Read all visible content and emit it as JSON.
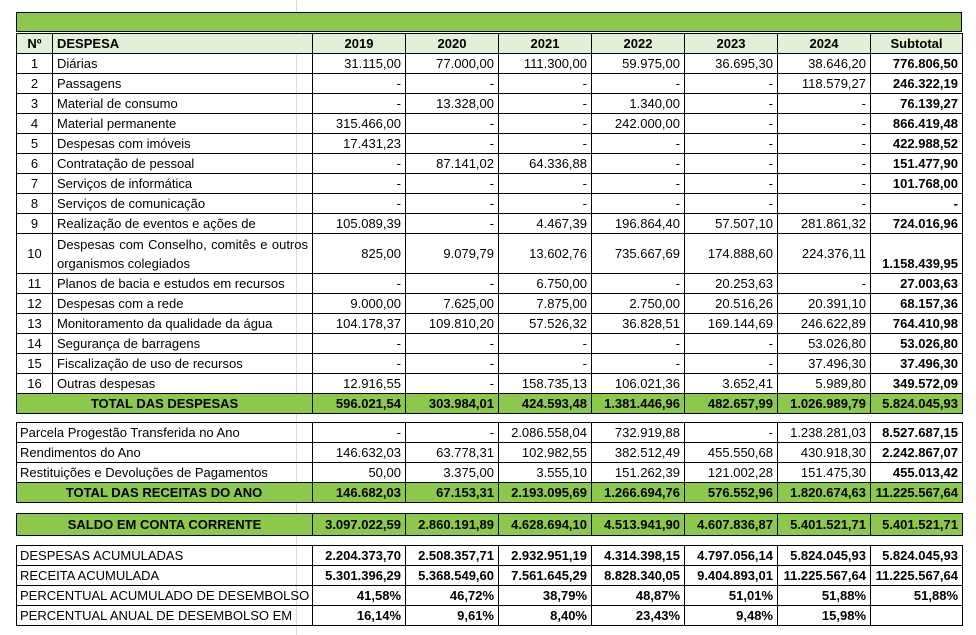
{
  "header": {
    "n": "Nº",
    "despesa": "DESPESA",
    "years": [
      "2019",
      "2020",
      "2021",
      "2022",
      "2023",
      "2024"
    ],
    "subtotal": "Subtotal"
  },
  "despesas": [
    {
      "n": "1",
      "label": "Diárias",
      "vals": [
        "31.115,00",
        "77.000,00",
        "111.300,00",
        "59.975,00",
        "36.695,30",
        "38.646,20"
      ],
      "subtotal": "776.806,50"
    },
    {
      "n": "2",
      "label": "Passagens",
      "vals": [
        "-",
        "-",
        "-",
        "-",
        "-",
        "118.579,27"
      ],
      "subtotal": "246.322,19"
    },
    {
      "n": "3",
      "label": "Material de consumo",
      "vals": [
        "-",
        "13.328,00",
        "-",
        "1.340,00",
        "-",
        "-"
      ],
      "subtotal": "76.139,27"
    },
    {
      "n": "4",
      "label": "Material permanente",
      "vals": [
        "315.466,00",
        "-",
        "-",
        "242.000,00",
        "-",
        "-"
      ],
      "subtotal": "866.419,48"
    },
    {
      "n": "5",
      "label": "Despesas com imóveis",
      "vals": [
        "17.431,23",
        "-",
        "-",
        "-",
        "-",
        "-"
      ],
      "subtotal": "422.988,52"
    },
    {
      "n": "6",
      "label": "Contratação de pessoal",
      "vals": [
        "-",
        "87.141,02",
        "64.336,88",
        "-",
        "-",
        "-"
      ],
      "subtotal": "151.477,90"
    },
    {
      "n": "7",
      "label": "Serviços de informática",
      "vals": [
        "-",
        "-",
        "-",
        "-",
        "-",
        "-"
      ],
      "subtotal": "101.768,00"
    },
    {
      "n": "8",
      "label": "Serviços de comunicação",
      "vals": [
        "-",
        "-",
        "-",
        "-",
        "-",
        "-"
      ],
      "subtotal": "-"
    },
    {
      "n": "9",
      "label": "Realização de eventos e ações de",
      "vals": [
        "105.089,39",
        "-",
        "4.467,39",
        "196.864,40",
        "57.507,10",
        "281.861,32"
      ],
      "subtotal": "724.016,96"
    },
    {
      "n": "10",
      "label": "Despesas com Conselho, comitês e outros organismos colegiados",
      "vals": [
        "825,00",
        "9.079,79",
        "13.602,76",
        "735.667,69",
        "174.888,60",
        "224.376,11"
      ],
      "subtotal": "1.158.439,95",
      "tall": true
    },
    {
      "n": "11",
      "label": "Planos de bacia e estudos em recursos",
      "vals": [
        "-",
        "-",
        "6.750,00",
        "-",
        "20.253,63",
        "-"
      ],
      "subtotal": "27.003,63"
    },
    {
      "n": "12",
      "label": "Despesas com a rede",
      "vals": [
        "9.000,00",
        "7.625,00",
        "7.875,00",
        "2.750,00",
        "20.516,26",
        "20.391,10"
      ],
      "subtotal": "68.157,36"
    },
    {
      "n": "13",
      "label": "Monitoramento da qualidade da água",
      "vals": [
        "104.178,37",
        "109.810,20",
        "57.526,32",
        "36.828,51",
        "169.144,69",
        "246.622,89"
      ],
      "subtotal": "764.410,98"
    },
    {
      "n": "14",
      "label": "Segurança de barragens",
      "vals": [
        "-",
        "-",
        "-",
        "-",
        "-",
        "53.026,80"
      ],
      "subtotal": "53.026,80"
    },
    {
      "n": "15",
      "label": "Fiscalização de uso de recursos",
      "vals": [
        "-",
        "-",
        "-",
        "-",
        "-",
        "37.496,30"
      ],
      "subtotal": "37.496,30"
    },
    {
      "n": "16",
      "label": "Outras despesas",
      "vals": [
        "12.916,55",
        "-",
        "158.735,13",
        "106.021,36",
        "3.652,41",
        "5.989,80"
      ],
      "subtotal": "349.572,09"
    }
  ],
  "total_despesas": {
    "label": "TOTAL DAS DESPESAS",
    "vals": [
      "596.021,54",
      "303.984,01",
      "424.593,48",
      "1.381.446,96",
      "482.657,99",
      "1.026.989,79"
    ],
    "subtotal": "5.824.045,93"
  },
  "receitas": [
    {
      "label": "Parcela Progestão Transferida no Ano",
      "vals": [
        "-",
        "-",
        "2.086.558,04",
        "732.919,88",
        "-",
        "1.238.281,03"
      ],
      "subtotal": "8.527.687,15"
    },
    {
      "label": "Rendimentos do Ano",
      "vals": [
        "146.632,03",
        "63.778,31",
        "102.982,55",
        "382.512,49",
        "455.550,68",
        "430.918,30"
      ],
      "subtotal": "2.242.867,07"
    },
    {
      "label": "Restituições e Devoluções de Pagamentos",
      "vals": [
        "50,00",
        "3.375,00",
        "3.555,10",
        "151.262,39",
        "121.002,28",
        "151.475,30"
      ],
      "subtotal": "455.013,42"
    }
  ],
  "total_receitas": {
    "label": "TOTAL DAS RECEITAS DO ANO",
    "vals": [
      "146.682,03",
      "67.153,31",
      "2.193.095,69",
      "1.266.694,76",
      "576.552,96",
      "1.820.674,63"
    ],
    "subtotal": "11.225.567,64"
  },
  "saldo": {
    "label": "SALDO EM CONTA CORRENTE",
    "vals": [
      "3.097.022,59",
      "2.860.191,89",
      "4.628.694,10",
      "4.513.941,90",
      "4.607.836,87",
      "5.401.521,71"
    ],
    "subtotal": "5.401.521,71"
  },
  "acumulados": [
    {
      "label": "DESPESAS ACUMULADAS",
      "vals": [
        "2.204.373,70",
        "2.508.357,71",
        "2.932.951,19",
        "4.314.398,15",
        "4.797.056,14",
        "5.824.045,93"
      ],
      "subtotal": "5.824.045,93"
    },
    {
      "label": "RECEITA ACUMULADA",
      "vals": [
        "5.301.396,29",
        "5.368.549,60",
        "7.561.645,29",
        "8.828.340,05",
        "9.404.893,01",
        "11.225.567,64"
      ],
      "subtotal": "11.225.567,64"
    },
    {
      "label": "PERCENTUAL ACUMULADO DE DESEMBOLSO",
      "vals": [
        "41,58%",
        "46,72%",
        "38,79%",
        "48,87%",
        "51,01%",
        "51,88%"
      ],
      "subtotal": "51,88%"
    },
    {
      "label": "PERCENTUAL ANUAL DE DESEMBOLSO EM",
      "vals": [
        "16,14%",
        "9,61%",
        "8,40%",
        "23,43%",
        "9,48%",
        "15,98%"
      ],
      "subtotal": ""
    }
  ],
  "colors": {
    "green": "#8cc84b",
    "header_bg": "#e2efd9"
  }
}
